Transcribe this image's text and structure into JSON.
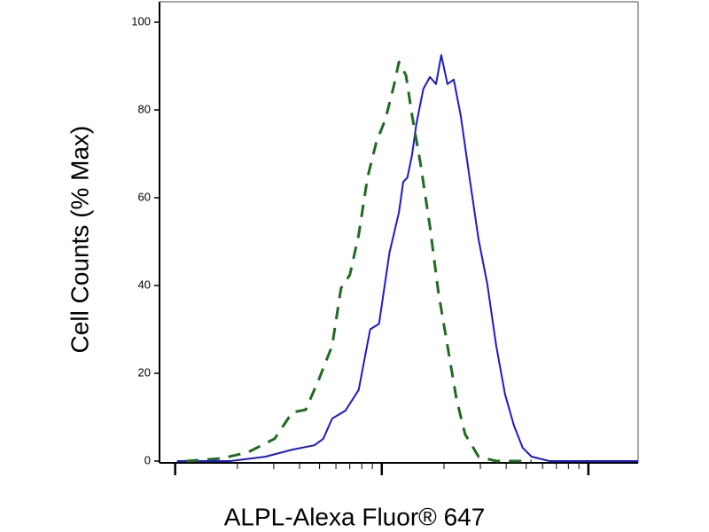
{
  "chart_data": {
    "type": "line",
    "x_label": "ALPL-Alexa Fluor® 647",
    "y_label": "Cell Counts (% Max)",
    "xscale": "log",
    "xlim": [
      8.4,
      1740
    ],
    "xticks": [
      10,
      100,
      1000
    ],
    "xminor": [
      20,
      30,
      40,
      50,
      60,
      70,
      80,
      90,
      200,
      300,
      400,
      500,
      600,
      700,
      800,
      900
    ],
    "ylim": [
      0,
      100
    ],
    "yticks": [
      0,
      20,
      40,
      60,
      80,
      100
    ],
    "series": [
      {
        "color": "#1a1acc",
        "dash": false,
        "x": [
          10.2,
          18.5,
          27.4,
          36.9,
          47.2,
          52.1,
          57.5,
          66.7,
          77.3,
          87.9,
          97.0,
          109,
          121,
          127,
          133,
          140,
          147,
          159,
          171,
          183,
          194,
          208,
          223,
          241,
          266,
          294,
          324,
          358,
          395,
          436,
          481,
          531,
          647,
          1738
        ],
        "values": [
          0,
          0,
          1,
          2.6,
          3.6,
          5.1,
          9.7,
          11.5,
          16.2,
          30,
          31.3,
          47.5,
          56.6,
          63.6,
          64.6,
          69.7,
          76.8,
          84.8,
          87.5,
          85.9,
          92.5,
          85.9,
          86.9,
          78.8,
          64.6,
          50.5,
          40.4,
          26.3,
          15.2,
          8.1,
          3,
          1,
          0,
          0
        ]
      },
      {
        "color": "#1f6b1f",
        "dash": true,
        "x": [
          11.3,
          16.7,
          22.5,
          30.3,
          36.9,
          42.8,
          49.6,
          57.5,
          63.5,
          70.0,
          77.3,
          85.3,
          94.2,
          104,
          115,
          121,
          131,
          140,
          154,
          171,
          188,
          208,
          230,
          253,
          294,
          358,
          531
        ],
        "values": [
          0,
          0.6,
          2,
          5.1,
          11.1,
          11.7,
          18.6,
          26.3,
          39.4,
          42.4,
          51.5,
          64.6,
          72.7,
          77.8,
          85.9,
          90.9,
          87.9,
          78.8,
          67.7,
          53.5,
          38.4,
          26.3,
          14.1,
          6.1,
          1,
          0,
          0
        ]
      }
    ]
  }
}
